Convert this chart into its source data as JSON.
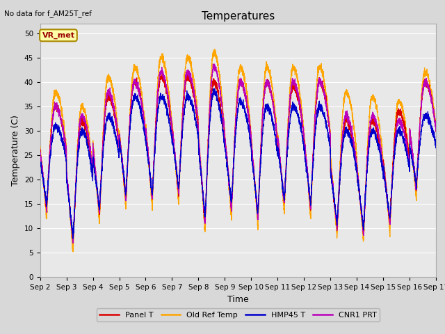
{
  "title": "Temperatures",
  "xlabel": "Time",
  "ylabel": "Temperature (C)",
  "note": "No data for f_AM25T_ref",
  "vr_met_label": "VR_met",
  "ylim": [
    0,
    52
  ],
  "yticks": [
    0,
    5,
    10,
    15,
    20,
    25,
    30,
    35,
    40,
    45,
    50
  ],
  "xtick_labels": [
    "Sep 2",
    "Sep 3",
    "Sep 4",
    "Sep 5",
    "Sep 6",
    "Sep 7",
    "Sep 8",
    "Sep 9",
    "Sep 10",
    "Sep 11",
    "Sep 12",
    "Sep 13",
    "Sep 14",
    "Sep 15",
    "Sep 16",
    "Sep 17"
  ],
  "colors": {
    "panel_t": "#dd0000",
    "old_ref_temp": "#ffa500",
    "hmp45_t": "#0000cc",
    "cnr1_prt": "#bb00bb"
  },
  "legend_labels": [
    "Panel T",
    "Old Ref Temp",
    "HMP45 T",
    "CNR1 PRT"
  ],
  "background_color": "#e8e8e8",
  "grid_color": "#ffffff",
  "fig_width": 6.4,
  "fig_height": 4.8,
  "dpi": 100
}
